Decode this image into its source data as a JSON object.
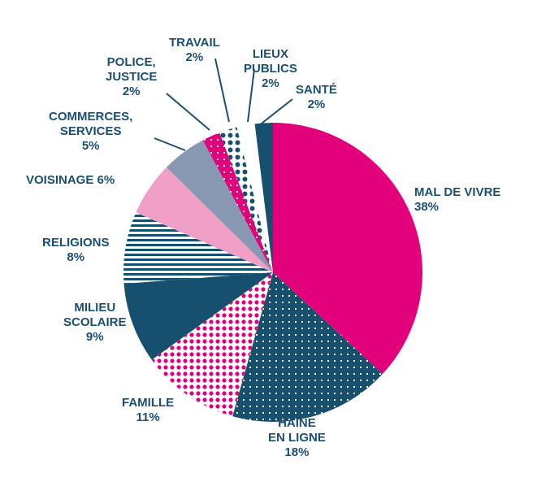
{
  "chart_data": {
    "type": "pie",
    "start": "top",
    "direction": "clockwise",
    "slices": [
      {
        "label": [
          "MAL DE VIVRE",
          "38%"
        ],
        "value": 38,
        "fill": "solid",
        "color": "#e3007b",
        "pattern_color": null
      },
      {
        "label": [
          "HAINE",
          "EN LIGNE",
          "18%"
        ],
        "value": 18,
        "fill": "navy with white dots",
        "color": "#17506f",
        "pattern_color": "#ffffff"
      },
      {
        "label": [
          "FAMILLE",
          "11%"
        ],
        "value": 11,
        "fill": "white with magenta dots",
        "color": "#ffffff",
        "pattern_color": "#e3007b"
      },
      {
        "label": [
          "MILIEU",
          "SCOLAIRE",
          "9%"
        ],
        "value": 9,
        "fill": "solid",
        "color": "#17506f",
        "pattern_color": null
      },
      {
        "label": [
          "RELIGIONS",
          "8%"
        ],
        "value": 8,
        "fill": "navy horizontal stripes",
        "color": "#ffffff",
        "pattern_color": "#17506f"
      },
      {
        "label": [
          "VOISINAGE 6%"
        ],
        "value": 6,
        "fill": "solid",
        "color": "#f0a0c6",
        "pattern_color": null
      },
      {
        "label": [
          "COMMERCES,",
          "SERVICES",
          "5%"
        ],
        "value": 5,
        "fill": "solid",
        "color": "#8898b2",
        "pattern_color": null
      },
      {
        "label": [
          "POLICE,",
          "JUSTICE",
          "2%"
        ],
        "value": 2,
        "fill": "magenta with white dots",
        "color": "#e3007b",
        "pattern_color": "#ffffff"
      },
      {
        "label": [
          "TRAVAIL",
          "2%"
        ],
        "value": 2,
        "fill": "white with navy dots",
        "color": "#ffffff",
        "pattern_color": "#17506f"
      },
      {
        "label": [
          "LIEUX",
          "PUBLICS",
          "2%"
        ],
        "value": 2,
        "fill": "solid",
        "color": "#ffffff",
        "pattern_color": null
      },
      {
        "label": [
          "SANTÉ",
          "2%"
        ],
        "value": 2,
        "fill": "solid",
        "color": "#17506f",
        "pattern_color": null
      }
    ]
  }
}
